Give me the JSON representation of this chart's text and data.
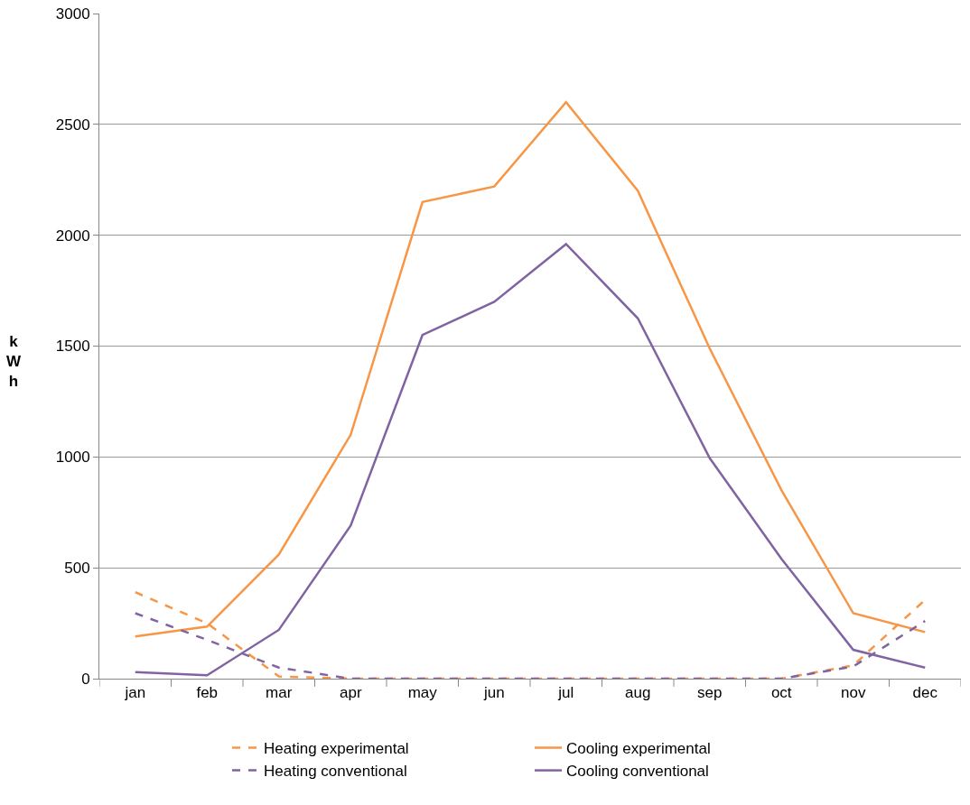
{
  "chart_data": {
    "type": "line",
    "ylabel": "kWh",
    "categories": [
      "jan",
      "feb",
      "mar",
      "apr",
      "may",
      "jun",
      "jul",
      "aug",
      "sep",
      "oct",
      "nov",
      "dec"
    ],
    "ylim": [
      0,
      3000
    ],
    "yticks": [
      0,
      500,
      1000,
      1500,
      2000,
      2500,
      3000
    ],
    "grid": "y",
    "legend": "bottom",
    "marker": "none",
    "series": [
      {
        "name": "Heating experimental",
        "color": "#f79646",
        "line_style": "dashed",
        "values": [
          390,
          250,
          10,
          0,
          0,
          0,
          0,
          0,
          0,
          0,
          60,
          355
        ]
      },
      {
        "name": "Cooling experimental",
        "color": "#f79646",
        "line_style": "solid",
        "values": [
          190,
          235,
          560,
          1100,
          2150,
          2220,
          2600,
          2200,
          1490,
          850,
          295,
          210
        ]
      },
      {
        "name": "Heating conventional",
        "color": "#8064a2",
        "line_style": "dashed",
        "values": [
          295,
          175,
          50,
          0,
          0,
          0,
          0,
          0,
          0,
          0,
          55,
          260
        ]
      },
      {
        "name": "Cooling conventional",
        "color": "#8064a2",
        "line_style": "solid",
        "values": [
          30,
          15,
          220,
          690,
          1550,
          1700,
          1960,
          1625,
          995,
          540,
          130,
          50
        ]
      }
    ]
  }
}
